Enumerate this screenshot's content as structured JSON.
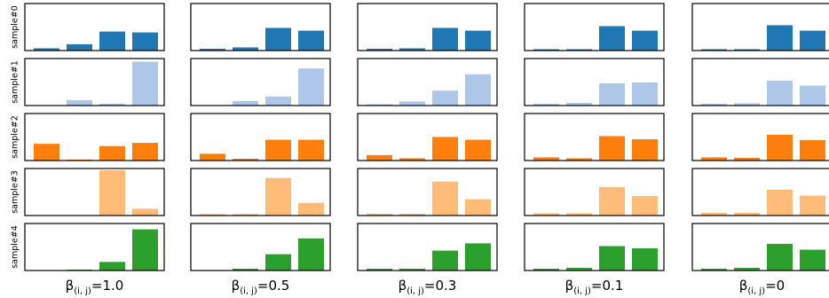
{
  "chart_data": {
    "type": "bar",
    "layout": "small-multiples grid, 5 rows x 5 columns",
    "row_labels": [
      "sample#0",
      "sample#1",
      "sample#2",
      "sample#3",
      "sample#4"
    ],
    "column_labels": [
      {
        "symbol": "β",
        "subscript": "(i, j)",
        "value": "=1.0"
      },
      {
        "symbol": "β",
        "subscript": "(i, j)",
        "value": "=0.5"
      },
      {
        "symbol": "β",
        "subscript": "(i, j)",
        "value": "=0.3"
      },
      {
        "symbol": "β",
        "subscript": "(i, j)",
        "value": "=0.1"
      },
      {
        "symbol": "β",
        "subscript": "(i, j)",
        "value": "=0"
      }
    ],
    "row_colors": [
      "#1f77b4",
      "#aec7e8",
      "#ff7f0e",
      "#ffbb78",
      "#2ca02c"
    ],
    "bars_per_panel": 4,
    "ylim": [
      0,
      1
    ],
    "grid": false,
    "legend": "none",
    "values": [
      [
        [
          0.05,
          0.14,
          0.42,
          0.4
        ],
        [
          0.04,
          0.07,
          0.5,
          0.44
        ],
        [
          0.04,
          0.05,
          0.5,
          0.44
        ],
        [
          0.03,
          0.03,
          0.54,
          0.44
        ],
        [
          0.03,
          0.03,
          0.56,
          0.44
        ]
      ],
      [
        [
          0.0,
          0.12,
          0.04,
          0.97
        ],
        [
          0.0,
          0.1,
          0.2,
          0.82
        ],
        [
          0.03,
          0.09,
          0.33,
          0.69
        ],
        [
          0.04,
          0.06,
          0.49,
          0.51
        ],
        [
          0.04,
          0.05,
          0.55,
          0.44
        ]
      ],
      [
        [
          0.37,
          0.02,
          0.32,
          0.39
        ],
        [
          0.15,
          0.04,
          0.46,
          0.46
        ],
        [
          0.12,
          0.05,
          0.52,
          0.46
        ],
        [
          0.07,
          0.05,
          0.54,
          0.47
        ],
        [
          0.07,
          0.06,
          0.57,
          0.45
        ]
      ],
      [
        [
          0.0,
          0.0,
          1.0,
          0.15
        ],
        [
          0.03,
          0.03,
          0.83,
          0.28
        ],
        [
          0.04,
          0.04,
          0.75,
          0.36
        ],
        [
          0.05,
          0.05,
          0.63,
          0.43
        ],
        [
          0.06,
          0.06,
          0.57,
          0.44
        ]
      ],
      [
        [
          0.0,
          0.02,
          0.19,
          0.91
        ],
        [
          0.01,
          0.04,
          0.36,
          0.71
        ],
        [
          0.04,
          0.04,
          0.44,
          0.6
        ],
        [
          0.04,
          0.06,
          0.54,
          0.49
        ],
        [
          0.04,
          0.06,
          0.59,
          0.46
        ]
      ]
    ]
  }
}
